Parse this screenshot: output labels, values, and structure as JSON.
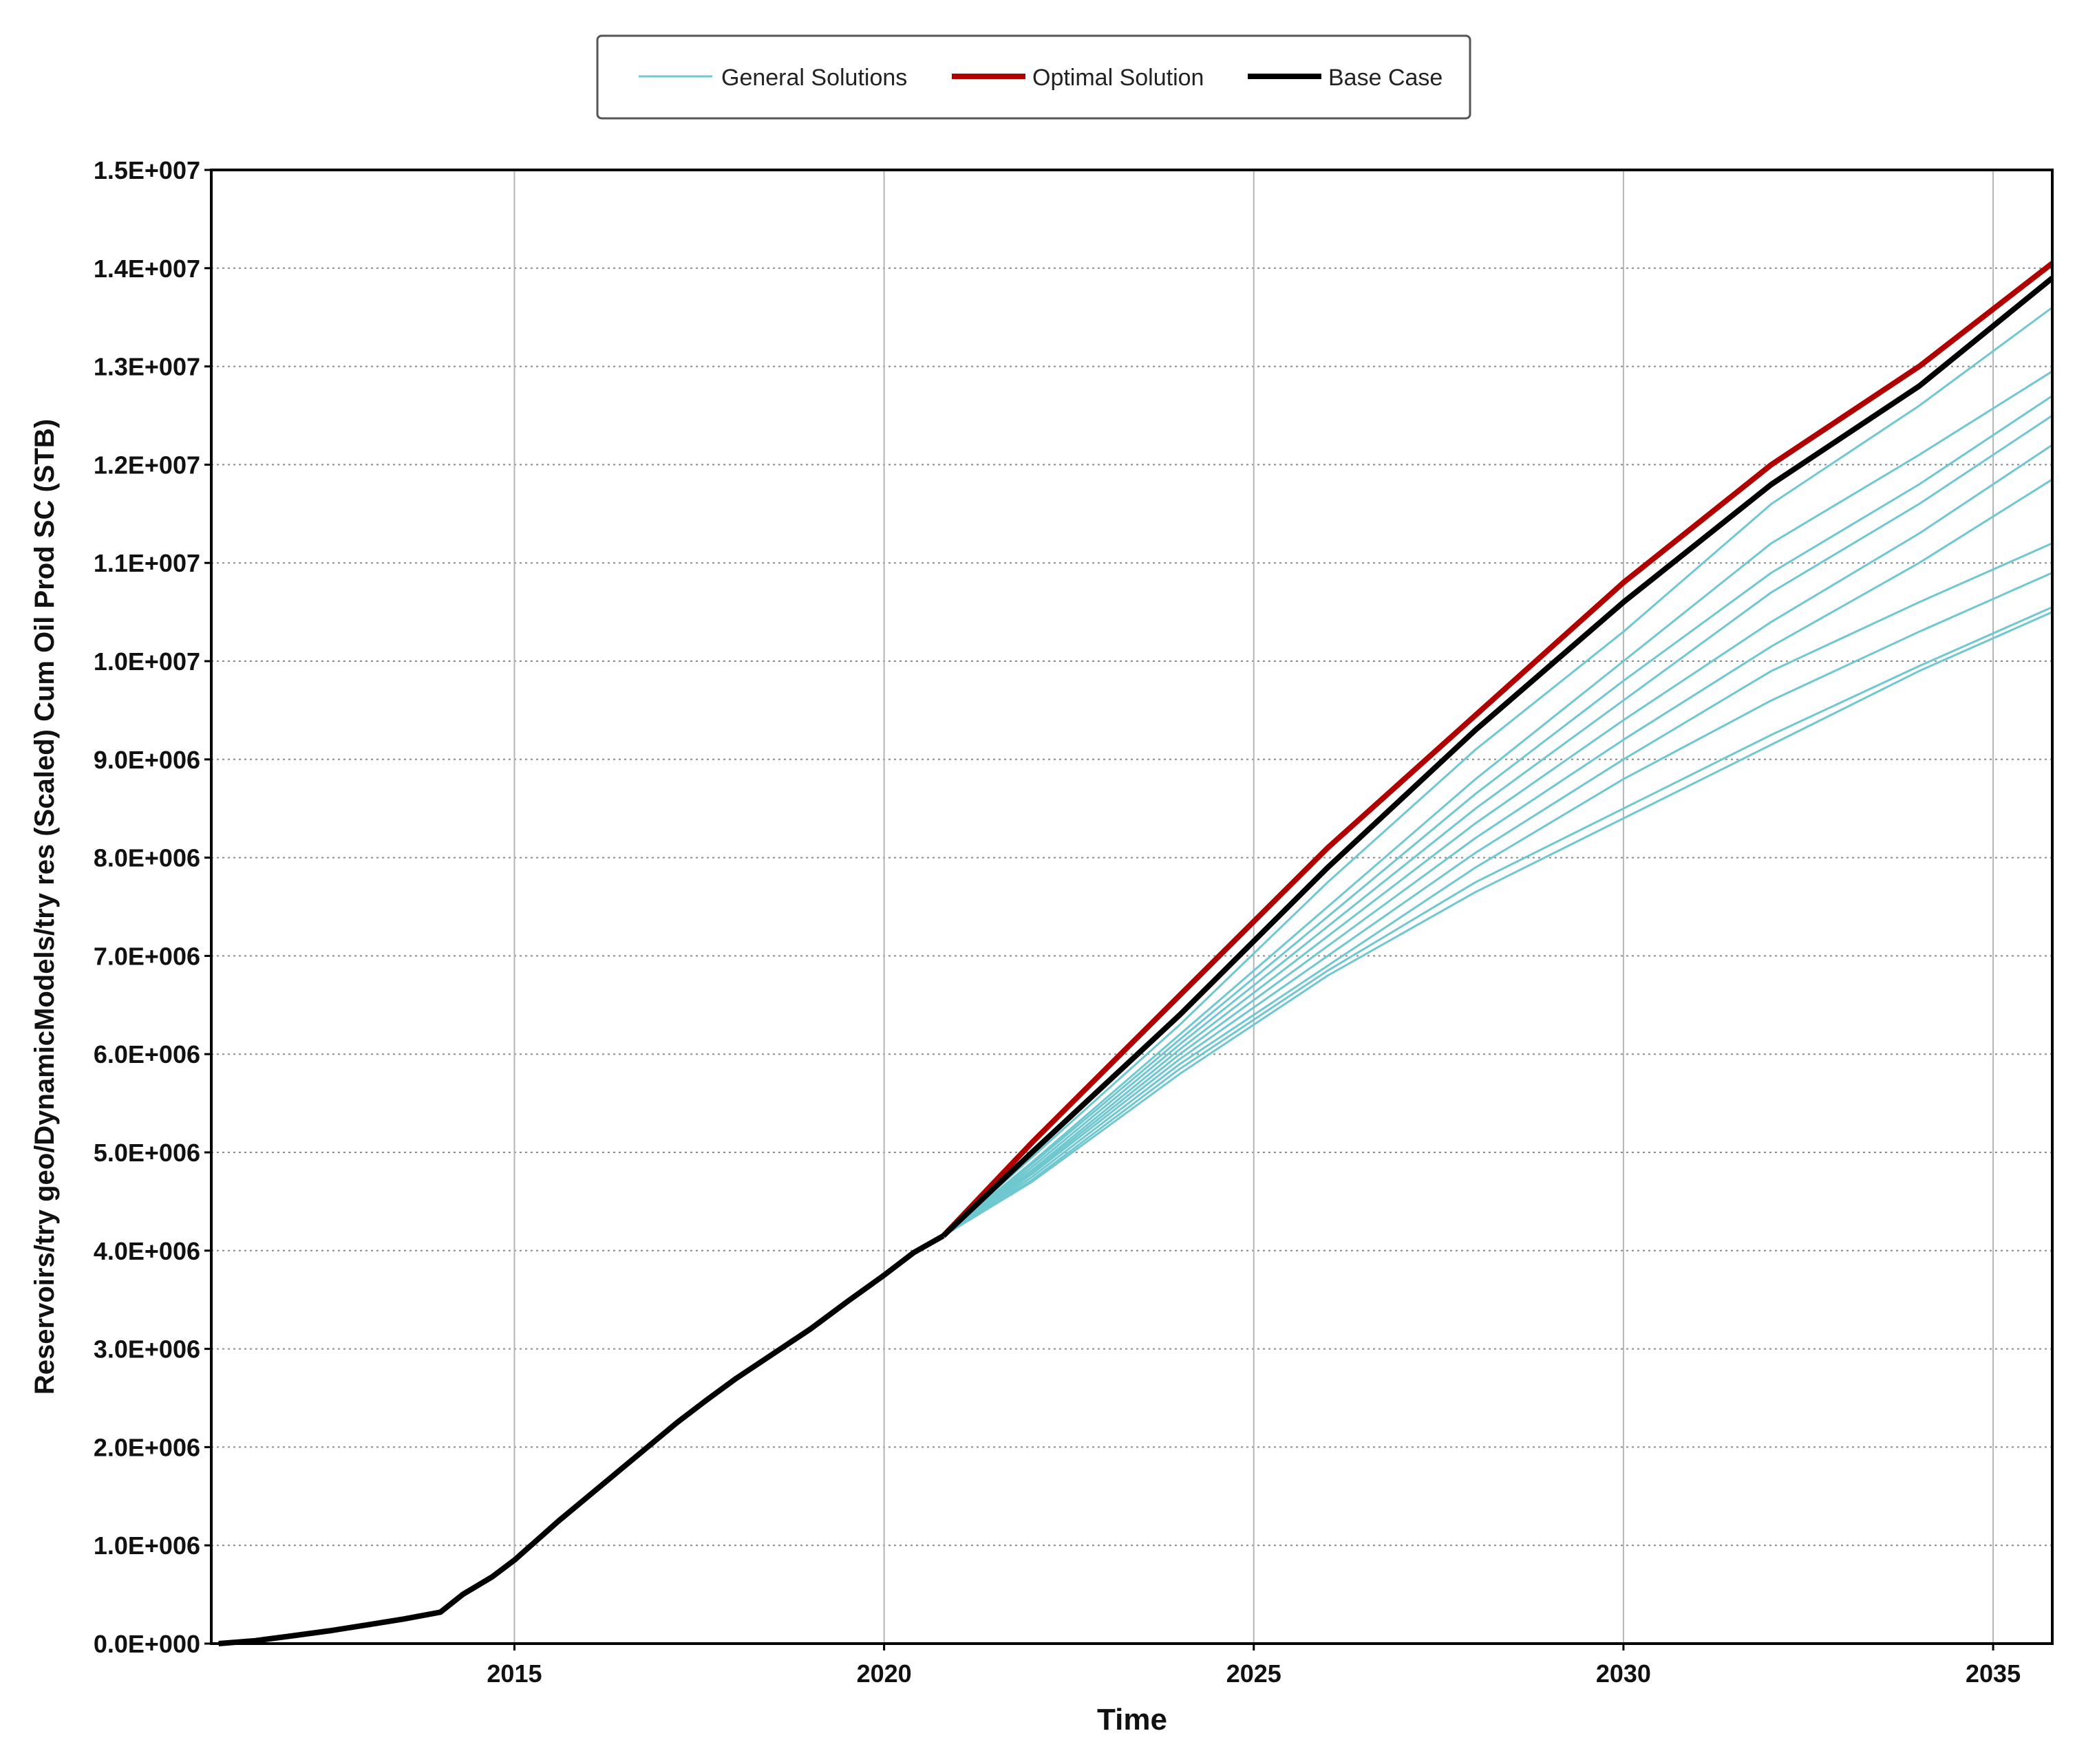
{
  "chart_data": {
    "type": "line",
    "title": "",
    "xlabel": "Time",
    "ylabel": "Reservoirs/try geo/DynamicModels/try res (Scaled) Cum Oil Prod SC (STB)",
    "xlim": [
      2010.9,
      2035.8
    ],
    "ylim": [
      0,
      15000000
    ],
    "x_ticks": [
      2015,
      2020,
      2025,
      2030,
      2035
    ],
    "x_tick_labels": [
      "2015",
      "2020",
      "2025",
      "2030",
      "2035"
    ],
    "y_ticks": [
      0,
      1000000,
      2000000,
      3000000,
      4000000,
      5000000,
      6000000,
      7000000,
      8000000,
      9000000,
      10000000,
      11000000,
      12000000,
      13000000,
      14000000,
      15000000
    ],
    "y_tick_labels": [
      "0.0E+000",
      "1.0E+006",
      "2.0E+006",
      "3.0E+006",
      "4.0E+006",
      "5.0E+006",
      "6.0E+006",
      "7.0E+006",
      "8.0E+006",
      "9.0E+006",
      "1.0E+007",
      "1.1E+007",
      "1.2E+007",
      "1.3E+007",
      "1.4E+007",
      "1.5E+007"
    ],
    "grid": true,
    "legend_position": "top-center",
    "legend": [
      {
        "label": "General Solutions",
        "color": "#6fc8d0"
      },
      {
        "label": "Optimal Solution",
        "color": "#b00000"
      },
      {
        "label": "Base Case",
        "color": "#000000"
      }
    ],
    "history": {
      "name": "Base Case",
      "x": [
        2011.0,
        2011.5,
        2012.0,
        2012.5,
        2013.0,
        2013.5,
        2014.0,
        2014.3,
        2014.7,
        2015.0,
        2015.3,
        2015.6,
        2016.0,
        2016.4,
        2016.8,
        2017.2,
        2017.6,
        2018.0,
        2018.5,
        2019.0,
        2019.5,
        2020.0,
        2020.4,
        2020.8
      ],
      "y": [
        0,
        30000,
        80000,
        130000,
        190000,
        250000,
        320000,
        500000,
        680000,
        850000,
        1050000,
        1250000,
        1500000,
        1750000,
        2000000,
        2250000,
        2480000,
        2700000,
        2950000,
        3200000,
        3480000,
        3750000,
        3980000,
        4150000
      ]
    },
    "x": [
      2020.8,
      2022,
      2024,
      2026,
      2028,
      2030,
      2032,
      2034,
      2035.8
    ],
    "series": [
      {
        "name": "Optimal Solution",
        "color": "#b00000",
        "values": [
          4150000,
          5100000,
          6600000,
          8100000,
          9450000,
          10800000,
          12000000,
          13000000,
          14050000
        ]
      },
      {
        "name": "Base Case",
        "color": "#000000",
        "values": [
          4150000,
          5000000,
          6400000,
          7900000,
          9300000,
          10600000,
          11800000,
          12800000,
          13900000
        ]
      },
      {
        "color": "#6fc8d0",
        "values": [
          4150000,
          4950000,
          6300000,
          7750000,
          9100000,
          10300000,
          11600000,
          12600000,
          13600000
        ]
      },
      {
        "color": "#6fc8d0",
        "values": [
          4150000,
          4900000,
          6200000,
          7500000,
          8800000,
          10000000,
          11200000,
          12100000,
          12950000
        ]
      },
      {
        "color": "#6fc8d0",
        "values": [
          4150000,
          4880000,
          6150000,
          7400000,
          8650000,
          9800000,
          10900000,
          11800000,
          12700000
        ]
      },
      {
        "color": "#6fc8d0",
        "values": [
          4150000,
          4850000,
          6100000,
          7300000,
          8500000,
          9600000,
          10700000,
          11600000,
          12500000
        ]
      },
      {
        "color": "#6fc8d0",
        "values": [
          4150000,
          4820000,
          6050000,
          7200000,
          8350000,
          9400000,
          10400000,
          11300000,
          12200000
        ]
      },
      {
        "color": "#6fc8d0",
        "values": [
          4150000,
          4800000,
          6000000,
          7100000,
          8200000,
          9200000,
          10150000,
          11000000,
          11850000
        ]
      },
      {
        "color": "#6fc8d0",
        "values": [
          4150000,
          4780000,
          5950000,
          7000000,
          8050000,
          9000000,
          9900000,
          10600000,
          11200000
        ]
      },
      {
        "color": "#6fc8d0",
        "values": [
          4150000,
          4750000,
          5900000,
          6900000,
          7900000,
          8800000,
          9600000,
          10300000,
          10900000
        ]
      },
      {
        "color": "#6fc8d0",
        "values": [
          4150000,
          4720000,
          5850000,
          6850000,
          7750000,
          8500000,
          9250000,
          9950000,
          10550000
        ]
      },
      {
        "color": "#6fc8d0",
        "values": [
          4150000,
          4700000,
          5800000,
          6800000,
          7650000,
          8400000,
          9150000,
          9900000,
          10500000
        ]
      }
    ]
  }
}
